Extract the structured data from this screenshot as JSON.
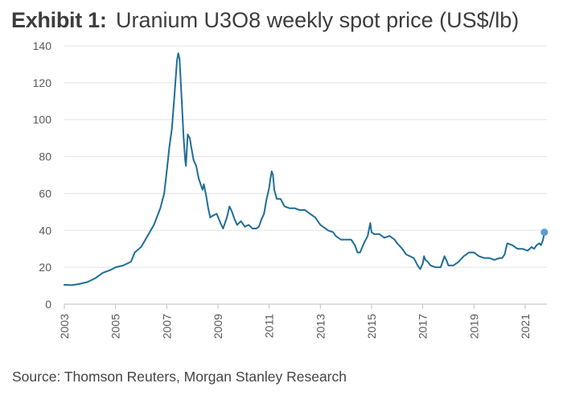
{
  "title": {
    "prefix": "Exhibit 1:",
    "text": "Uranium U3O8 weekly spot price (US$/lb)"
  },
  "source": "Source: Thomson Reuters, Morgan Stanley Research",
  "colors": {
    "line": "#1f6e96",
    "end_marker": "#5b9bd5",
    "axis": "#bfbfbf",
    "grid": "#e3e3e3"
  },
  "chart_data": {
    "type": "line",
    "title": "Uranium U3O8 weekly spot price (US$/lb)",
    "xlabel": "",
    "ylabel": "",
    "xlim": [
      2003.0,
      2021.85
    ],
    "ylim": [
      0,
      140
    ],
    "y_ticks": [
      0,
      20,
      40,
      60,
      80,
      100,
      120,
      140
    ],
    "x_ticks": [
      2003,
      2005,
      2007,
      2009,
      2011,
      2013,
      2015,
      2017,
      2019,
      2021
    ],
    "grid": true,
    "legend": "none",
    "series": [
      {
        "points": [
          [
            2003.0,
            10.5
          ],
          [
            2003.3,
            10.3
          ],
          [
            2003.6,
            11.0
          ],
          [
            2003.9,
            12.0
          ],
          [
            2004.2,
            14.0
          ],
          [
            2004.5,
            17.0
          ],
          [
            2004.8,
            18.5
          ],
          [
            2005.0,
            20.0
          ],
          [
            2005.3,
            21.0
          ],
          [
            2005.6,
            23.0
          ],
          [
            2005.75,
            28.0
          ],
          [
            2006.0,
            31.0
          ],
          [
            2006.25,
            37.0
          ],
          [
            2006.5,
            43.0
          ],
          [
            2006.75,
            52.0
          ],
          [
            2006.9,
            60.0
          ],
          [
            2007.0,
            72.0
          ],
          [
            2007.1,
            85.0
          ],
          [
            2007.2,
            95.0
          ],
          [
            2007.3,
            113.0
          ],
          [
            2007.4,
            132.0
          ],
          [
            2007.45,
            136.0
          ],
          [
            2007.5,
            133.0
          ],
          [
            2007.58,
            112.0
          ],
          [
            2007.66,
            90.0
          ],
          [
            2007.72,
            78.0
          ],
          [
            2007.75,
            75.0
          ],
          [
            2007.82,
            92.0
          ],
          [
            2007.9,
            90.0
          ],
          [
            2007.96,
            85.0
          ],
          [
            2008.05,
            78.0
          ],
          [
            2008.15,
            75.0
          ],
          [
            2008.25,
            68.0
          ],
          [
            2008.4,
            62.0
          ],
          [
            2008.45,
            65.0
          ],
          [
            2008.55,
            58.0
          ],
          [
            2008.62,
            52.0
          ],
          [
            2008.7,
            47.0
          ],
          [
            2008.8,
            48.0
          ],
          [
            2008.95,
            49.0
          ],
          [
            2009.1,
            44.0
          ],
          [
            2009.2,
            41.0
          ],
          [
            2009.35,
            47.0
          ],
          [
            2009.45,
            53.0
          ],
          [
            2009.55,
            50.0
          ],
          [
            2009.65,
            46.0
          ],
          [
            2009.75,
            43.0
          ],
          [
            2009.9,
            45.0
          ],
          [
            2010.05,
            42.0
          ],
          [
            2010.2,
            43.0
          ],
          [
            2010.35,
            41.0
          ],
          [
            2010.5,
            41.0
          ],
          [
            2010.6,
            42.0
          ],
          [
            2010.7,
            46.0
          ],
          [
            2010.8,
            49.0
          ],
          [
            2010.9,
            57.0
          ],
          [
            2011.0,
            63.0
          ],
          [
            2011.05,
            68.0
          ],
          [
            2011.1,
            72.0
          ],
          [
            2011.15,
            70.0
          ],
          [
            2011.2,
            62.0
          ],
          [
            2011.3,
            57.0
          ],
          [
            2011.45,
            57.0
          ],
          [
            2011.6,
            53.0
          ],
          [
            2011.8,
            52.0
          ],
          [
            2012.0,
            52.0
          ],
          [
            2012.2,
            51.0
          ],
          [
            2012.4,
            51.0
          ],
          [
            2012.6,
            49.0
          ],
          [
            2012.8,
            47.0
          ],
          [
            2013.0,
            43.0
          ],
          [
            2013.1,
            42.0
          ],
          [
            2013.3,
            40.0
          ],
          [
            2013.5,
            39.0
          ],
          [
            2013.6,
            37.0
          ],
          [
            2013.8,
            35.0
          ],
          [
            2014.0,
            35.0
          ],
          [
            2014.2,
            35.0
          ],
          [
            2014.35,
            32.0
          ],
          [
            2014.45,
            28.0
          ],
          [
            2014.55,
            28.0
          ],
          [
            2014.7,
            33.0
          ],
          [
            2014.85,
            37.0
          ],
          [
            2014.95,
            44.0
          ],
          [
            2015.0,
            39.0
          ],
          [
            2015.1,
            38.0
          ],
          [
            2015.3,
            38.0
          ],
          [
            2015.5,
            36.0
          ],
          [
            2015.7,
            37.0
          ],
          [
            2015.9,
            35.0
          ],
          [
            2016.0,
            33.0
          ],
          [
            2016.2,
            30.0
          ],
          [
            2016.35,
            27.0
          ],
          [
            2016.5,
            26.0
          ],
          [
            2016.65,
            25.0
          ],
          [
            2016.8,
            21.0
          ],
          [
            2016.9,
            19.0
          ],
          [
            2017.0,
            22.0
          ],
          [
            2017.05,
            26.0
          ],
          [
            2017.1,
            24.0
          ],
          [
            2017.2,
            23.0
          ],
          [
            2017.3,
            21.0
          ],
          [
            2017.5,
            20.0
          ],
          [
            2017.7,
            20.0
          ],
          [
            2017.85,
            26.0
          ],
          [
            2017.95,
            23.0
          ],
          [
            2018.0,
            21.0
          ],
          [
            2018.2,
            21.0
          ],
          [
            2018.4,
            23.0
          ],
          [
            2018.6,
            26.0
          ],
          [
            2018.8,
            28.0
          ],
          [
            2019.0,
            28.0
          ],
          [
            2019.2,
            26.0
          ],
          [
            2019.4,
            25.0
          ],
          [
            2019.6,
            25.0
          ],
          [
            2019.8,
            24.0
          ],
          [
            2020.0,
            25.0
          ],
          [
            2020.1,
            25.0
          ],
          [
            2020.2,
            27.0
          ],
          [
            2020.3,
            33.0
          ],
          [
            2020.5,
            32.0
          ],
          [
            2020.7,
            30.0
          ],
          [
            2020.9,
            30.0
          ],
          [
            2021.1,
            29.0
          ],
          [
            2021.25,
            31.0
          ],
          [
            2021.35,
            30.0
          ],
          [
            2021.45,
            32.0
          ],
          [
            2021.55,
            33.0
          ],
          [
            2021.62,
            32.0
          ],
          [
            2021.7,
            35.0
          ],
          [
            2021.75,
            39.0
          ]
        ]
      }
    ]
  }
}
